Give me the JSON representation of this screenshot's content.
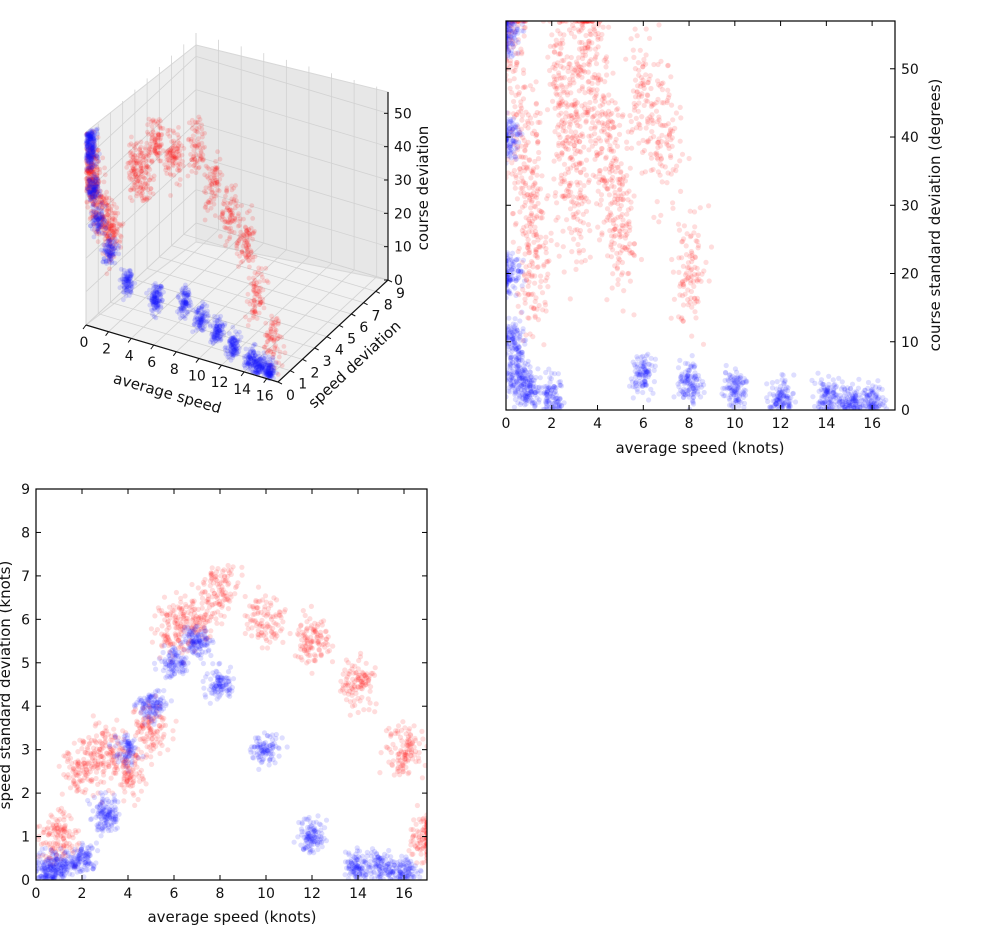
{
  "chart_data": [
    {
      "type": "scatter",
      "projection": "3d",
      "xlabel": "average speed",
      "ylabel": "speed deviation",
      "zlabel": "course deviation",
      "xlim": [
        0,
        17
      ],
      "ylim": [
        0,
        9
      ],
      "zlim": [
        0,
        57
      ],
      "xticks": [
        "0",
        "2",
        "4",
        "6",
        "8",
        "10",
        "12",
        "14",
        "16"
      ],
      "yticks": [
        "0",
        "1",
        "2",
        "3",
        "4",
        "5",
        "6",
        "7",
        "8",
        "9"
      ],
      "zticks": [
        "0",
        "10",
        "20",
        "30",
        "40",
        "50"
      ],
      "series_colors": [
        "#ff1010",
        "#1414ff"
      ],
      "alpha": 0.1,
      "series": [
        {
          "x": [
            0.1,
            0.2,
            0.3,
            0.5,
            0.8,
            1.2,
            2.8,
            3.0,
            3.5,
            4.5,
            6,
            8,
            10,
            12,
            14,
            16
          ],
          "y": [
            0.1,
            0.2,
            0.3,
            0.5,
            0.8,
            1.0,
            1.5,
            2.0,
            2.5,
            3.0,
            3.5,
            3.0,
            2.5,
            2.0,
            1.0,
            0.5
          ],
          "z": [
            50,
            45,
            40,
            35,
            30,
            25,
            45,
            40,
            50,
            45,
            48,
            40,
            35,
            30,
            20,
            10
          ]
        },
        {
          "x": [
            0.1,
            0.2,
            0.3,
            0.5,
            1.0,
            2.0,
            4.0,
            6.0,
            8.0,
            10,
            12,
            14,
            15,
            16
          ],
          "y": [
            0.1,
            0.2,
            0.3,
            0.5,
            1.0,
            1.5,
            2.0,
            2.5,
            2.0,
            1.5,
            1.0,
            0.5,
            0.3,
            0.2
          ],
          "z": [
            55,
            50,
            40,
            30,
            20,
            10,
            5,
            4,
            3,
            3,
            2,
            2,
            1,
            1
          ]
        }
      ]
    },
    {
      "type": "scatter",
      "xlabel": "average speed (knots)",
      "ylabel": "course standard deviation (degrees)",
      "xlim": [
        0,
        17
      ],
      "ylim": [
        0,
        57
      ],
      "xticks": [
        "0",
        "2",
        "4",
        "6",
        "8",
        "10",
        "12",
        "14",
        "16"
      ],
      "yticks": [
        "0",
        "10",
        "20",
        "30",
        "40",
        "50"
      ],
      "yaxis_side": "right",
      "series_colors": [
        "#ff1010",
        "#1414ff"
      ],
      "alpha": 0.1,
      "series": [
        {
          "x": [
            0.3,
            0.8,
            1.0,
            1.2,
            2.5,
            2.8,
            3.0,
            3.5,
            4.0,
            4.5,
            5.0,
            6.0,
            7.0,
            8.0
          ],
          "y": [
            55,
            40,
            30,
            20,
            50,
            40,
            30,
            55,
            45,
            35,
            25,
            45,
            40,
            20
          ]
        },
        {
          "x": [
            0.1,
            0.1,
            0.2,
            0.3,
            0.5,
            1.0,
            2.0,
            6.0,
            8.0,
            10,
            12,
            14,
            15,
            16
          ],
          "y": [
            55,
            40,
            20,
            10,
            5,
            3,
            2,
            5,
            4,
            3,
            2,
            2,
            1,
            1
          ]
        }
      ]
    },
    {
      "type": "scatter",
      "xlabel": "average speed (knots)",
      "ylabel": "speed standard deviation (knots)",
      "xlim": [
        0,
        17
      ],
      "ylim": [
        0,
        9
      ],
      "xticks": [
        "0",
        "2",
        "4",
        "6",
        "8",
        "10",
        "12",
        "14",
        "16"
      ],
      "yticks": [
        "0",
        "1",
        "2",
        "3",
        "4",
        "5",
        "6",
        "7",
        "8",
        "9"
      ],
      "series_colors": [
        "#ff1010",
        "#1414ff"
      ],
      "alpha": 0.1,
      "series": [
        {
          "x": [
            1.0,
            2.0,
            3.0,
            4.0,
            5.0,
            6.0,
            7.0,
            8.0,
            10,
            12,
            14,
            16,
            17
          ],
          "y": [
            1.0,
            2.5,
            3.0,
            2.5,
            3.5,
            5.8,
            6.0,
            6.7,
            6.0,
            5.5,
            4.5,
            3.0,
            1.0
          ]
        },
        {
          "x": [
            0.5,
            1.0,
            2.0,
            3.0,
            4.0,
            5.0,
            6.0,
            7.0,
            8.0,
            10,
            12,
            14,
            15,
            16
          ],
          "y": [
            0.2,
            0.3,
            0.5,
            1.5,
            3.0,
            4.0,
            5.0,
            5.5,
            4.5,
            3.0,
            1.0,
            0.3,
            0.3,
            0.2
          ]
        }
      ]
    }
  ]
}
